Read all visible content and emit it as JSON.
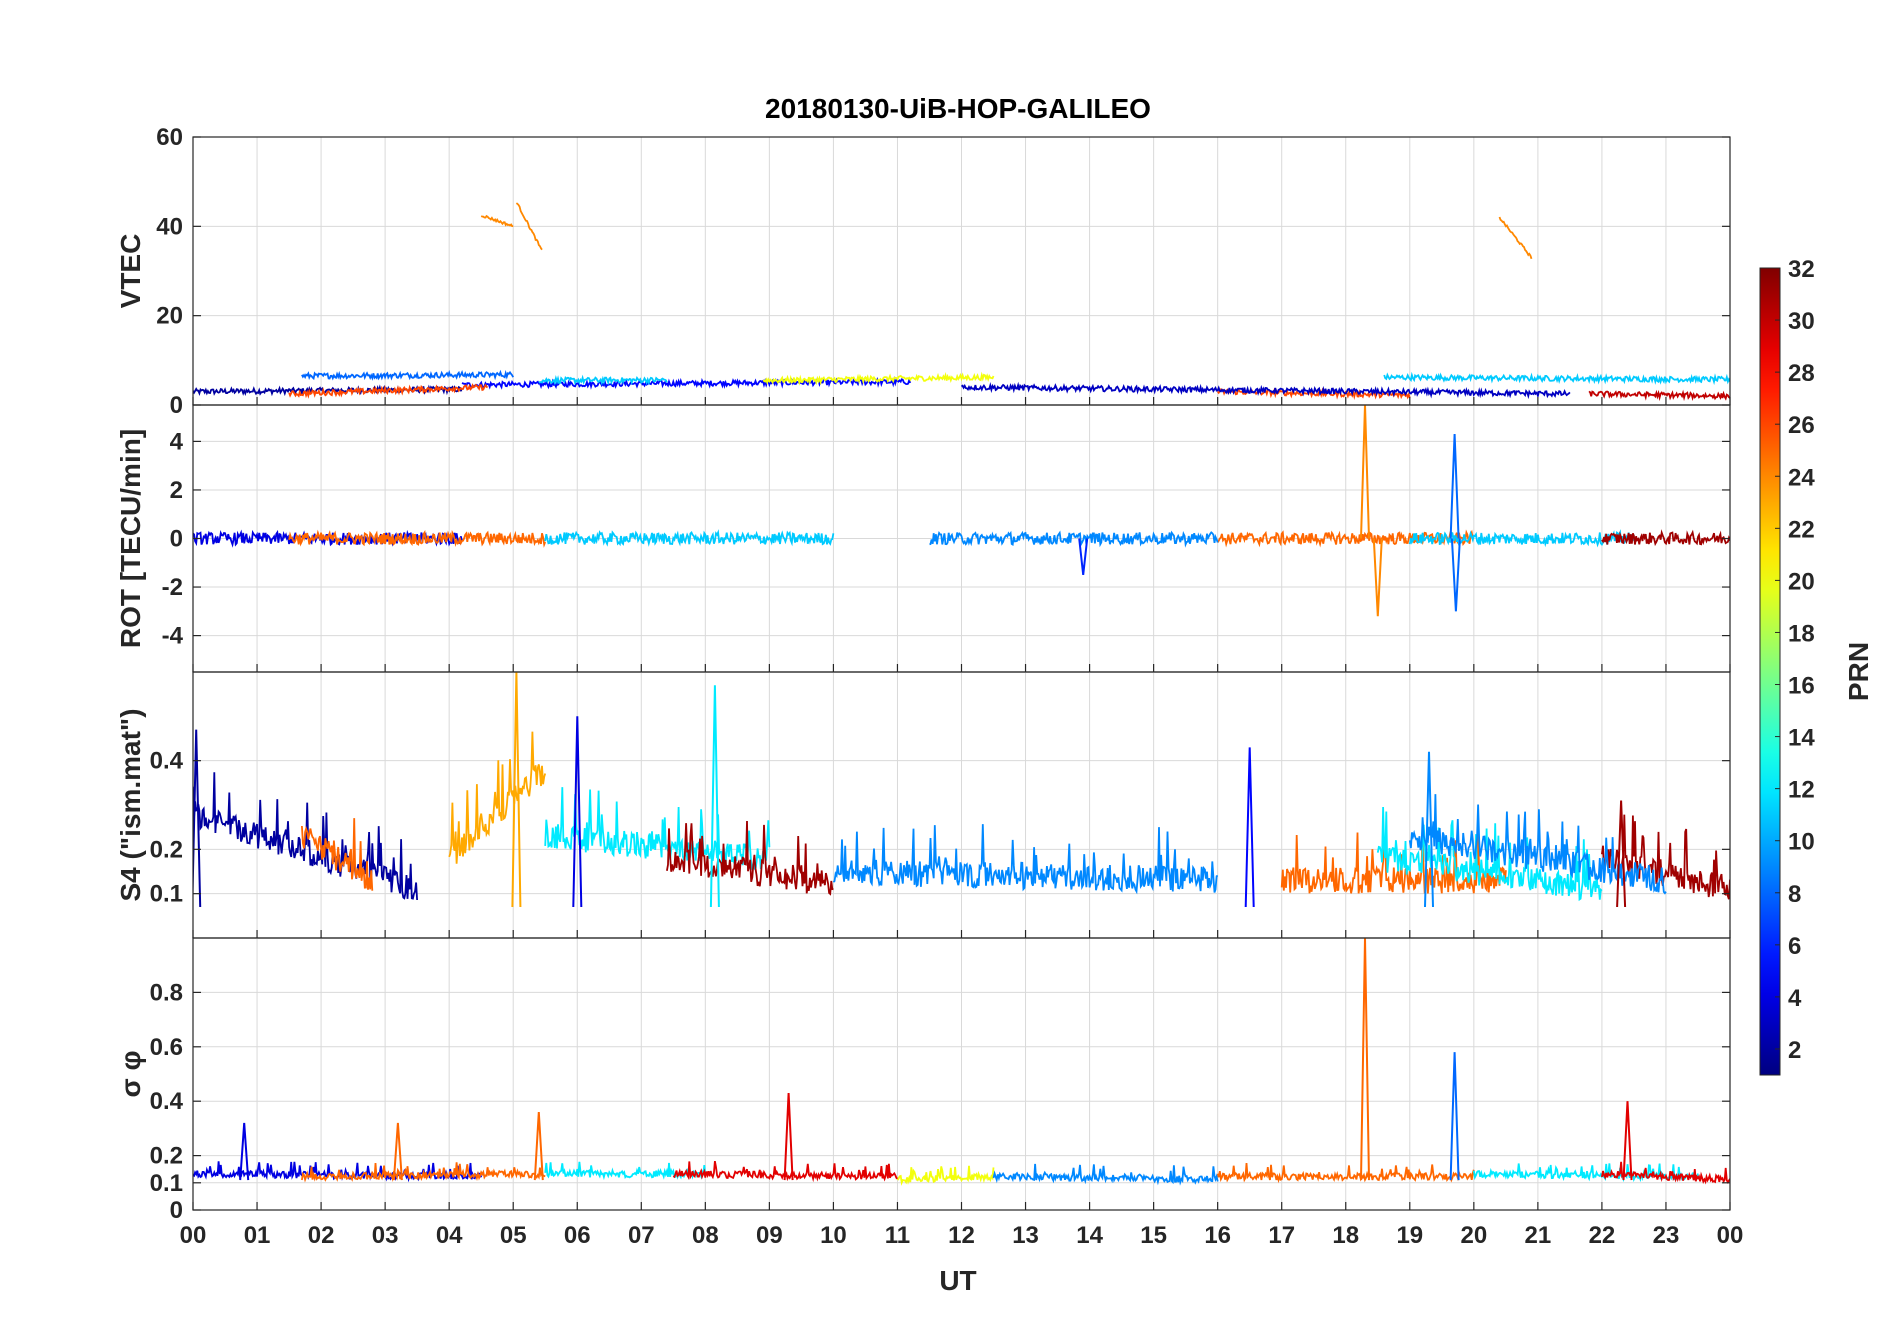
{
  "chart_data": {
    "type": "line",
    "title": "20180130-UiB-HOP-GALILEO",
    "xlabel": "UT",
    "x_ticks": [
      "00",
      "01",
      "02",
      "03",
      "04",
      "05",
      "06",
      "07",
      "08",
      "09",
      "10",
      "11",
      "12",
      "13",
      "14",
      "15",
      "16",
      "17",
      "18",
      "19",
      "20",
      "21",
      "22",
      "23",
      "00"
    ],
    "x_range_hours": [
      0,
      24
    ],
    "colorbar": {
      "label": "PRN",
      "range": [
        1,
        32
      ],
      "ticks": [
        "2",
        "4",
        "6",
        "8",
        "10",
        "12",
        "14",
        "16",
        "18",
        "20",
        "22",
        "24",
        "26",
        "28",
        "30",
        "32"
      ],
      "colormap": "jet"
    },
    "panels": [
      {
        "id": "vtec",
        "ylabel": "VTEC",
        "ylim": [
          0,
          60
        ],
        "yticks": [
          "0",
          "20",
          "40",
          "60"
        ],
        "ytick_values": [
          0,
          20,
          40,
          60
        ],
        "baseline": 4,
        "noise": 0.6,
        "series": [
          {
            "prn": 2,
            "segments": [
              [
                0.0,
                4.2,
                3.0,
                3.5
              ]
            ]
          },
          {
            "prn": 5,
            "segments": [
              [
                4.2,
                11.2,
                4.5,
                5.2
              ]
            ]
          },
          {
            "prn": 8,
            "segments": [
              [
                1.7,
                5.0,
                6.5,
                6.8
              ]
            ]
          },
          {
            "prn": 11,
            "segments": [
              [
                5.4,
                7.4,
                5.5,
                5.6
              ],
              [
                18.6,
                24.0,
                6.2,
                5.7
              ]
            ]
          },
          {
            "prn": 20,
            "segments": [
              [
                8.9,
                12.5,
                5.5,
                6.2
              ]
            ]
          },
          {
            "prn": 24,
            "segments": [
              [
                4.5,
                5.0,
                42.5,
                40.0
              ],
              [
                5.05,
                5.45,
                45.5,
                34.5
              ],
              [
                20.4,
                20.9,
                42.0,
                33.0
              ]
            ]
          },
          {
            "prn": 26,
            "segments": [
              [
                1.5,
                4.6,
                2.5,
                4.0
              ],
              [
                16.0,
                19.0,
                3.0,
                2.2
              ]
            ]
          },
          {
            "prn": 3,
            "segments": [
              [
                12.0,
                21.5,
                4.0,
                2.5
              ]
            ]
          },
          {
            "prn": 30,
            "segments": [
              [
                21.8,
                24.0,
                2.5,
                2.0
              ]
            ]
          }
        ]
      },
      {
        "id": "rot",
        "ylabel": "ROT [TECU/min]",
        "ylim": [
          -5.5,
          5.5
        ],
        "yticks": [
          "-4",
          "-2",
          "0",
          "2",
          "4"
        ],
        "ytick_values": [
          -4,
          -2,
          0,
          2,
          4
        ],
        "baseline": 0,
        "noise": 0.25,
        "spikes": [
          {
            "hour": 18.3,
            "value": 5.5,
            "prn": 24
          },
          {
            "hour": 18.5,
            "value": -3.2,
            "prn": 24
          },
          {
            "hour": 19.7,
            "value": 4.3,
            "prn": 8
          },
          {
            "hour": 19.72,
            "value": -3.0,
            "prn": 8
          },
          {
            "hour": 13.9,
            "value": -1.5,
            "prn": 6
          }
        ],
        "series": [
          {
            "prn": 4,
            "segments": [
              [
                0.0,
                4.2,
                0,
                0
              ]
            ]
          },
          {
            "prn": 25,
            "segments": [
              [
                1.5,
                5.5,
                0,
                0
              ],
              [
                16.0,
                20.0,
                0,
                0
              ]
            ]
          },
          {
            "prn": 11,
            "segments": [
              [
                5.5,
                10.0,
                0,
                0
              ],
              [
                19.0,
                22.5,
                0,
                0
              ]
            ]
          },
          {
            "prn": 9,
            "segments": [
              [
                11.5,
                16.0,
                0,
                0
              ]
            ]
          },
          {
            "prn": 31,
            "segments": [
              [
                22.0,
                24.0,
                0,
                0
              ]
            ]
          }
        ]
      },
      {
        "id": "s4",
        "ylabel": "S4 (\"ism.mat\")",
        "ylim": [
          0,
          0.6
        ],
        "yticks": [
          "0.1",
          "0.2",
          "0.4"
        ],
        "ytick_values": [
          0.1,
          0.2,
          0.4
        ],
        "baseline": 0.07,
        "noise": 0.06,
        "spikes": [
          {
            "hour": 5.05,
            "value": 0.6,
            "prn": 23
          },
          {
            "hour": 8.15,
            "value": 0.57,
            "prn": 12
          },
          {
            "hour": 6.0,
            "value": 0.5,
            "prn": 4
          },
          {
            "hour": 0.05,
            "value": 0.47,
            "prn": 2
          },
          {
            "hour": 16.5,
            "value": 0.43,
            "prn": 5
          },
          {
            "hour": 19.3,
            "value": 0.42,
            "prn": 9
          },
          {
            "hour": 22.3,
            "value": 0.31,
            "prn": 31
          }
        ],
        "series": [
          {
            "prn": 2,
            "segments": [
              [
                0.0,
                3.5,
                0.25,
                0.08
              ]
            ]
          },
          {
            "prn": 25,
            "segments": [
              [
                1.7,
                2.8,
                0.2,
                0.1
              ],
              [
                17.0,
                20.5,
                0.1,
                0.1
              ]
            ]
          },
          {
            "prn": 23,
            "segments": [
              [
                4.0,
                5.5,
                0.15,
                0.35
              ]
            ]
          },
          {
            "prn": 12,
            "segments": [
              [
                5.5,
                9.0,
                0.2,
                0.15
              ],
              [
                18.5,
                22.0,
                0.15,
                0.08
              ]
            ]
          },
          {
            "prn": 31,
            "segments": [
              [
                7.4,
                10.0,
                0.15,
                0.09
              ],
              [
                22.0,
                24.0,
                0.15,
                0.08
              ]
            ]
          },
          {
            "prn": 9,
            "segments": [
              [
                10.0,
                16.0,
                0.12,
                0.1
              ],
              [
                19.0,
                23.0,
                0.2,
                0.1
              ]
            ]
          }
        ]
      },
      {
        "id": "sigma_phi",
        "ylabel": "σ φ",
        "ylim": [
          0,
          1.0
        ],
        "yticks": [
          "0",
          "0.1",
          "0.2",
          "0.4",
          "0.6",
          "0.8"
        ],
        "ytick_values": [
          0,
          0.1,
          0.2,
          0.4,
          0.6,
          0.8
        ],
        "baseline": 0.11,
        "noise": 0.025,
        "spikes": [
          {
            "hour": 18.3,
            "value": 1.0,
            "prn": 25
          },
          {
            "hour": 19.7,
            "value": 0.58,
            "prn": 8
          },
          {
            "hour": 9.3,
            "value": 0.43,
            "prn": 29
          },
          {
            "hour": 22.4,
            "value": 0.4,
            "prn": 29
          },
          {
            "hour": 5.4,
            "value": 0.36,
            "prn": 25
          },
          {
            "hour": 3.2,
            "value": 0.32,
            "prn": 25
          },
          {
            "hour": 0.8,
            "value": 0.32,
            "prn": 4
          }
        ],
        "series": [
          {
            "prn": 4,
            "segments": [
              [
                0.0,
                4.5,
                0.12,
                0.11
              ]
            ]
          },
          {
            "prn": 25,
            "segments": [
              [
                1.7,
                5.5,
                0.11,
                0.12
              ],
              [
                16.0,
                20.0,
                0.11,
                0.11
              ]
            ]
          },
          {
            "prn": 12,
            "segments": [
              [
                5.5,
                8.0,
                0.12,
                0.12
              ],
              [
                20.0,
                23.5,
                0.12,
                0.11
              ]
            ]
          },
          {
            "prn": 29,
            "segments": [
              [
                7.5,
                11.0,
                0.12,
                0.11
              ],
              [
                22.0,
                24.0,
                0.12,
                0.1
              ]
            ]
          },
          {
            "prn": 20,
            "segments": [
              [
                11.0,
                12.5,
                0.1,
                0.11
              ]
            ]
          },
          {
            "prn": 9,
            "segments": [
              [
                12.5,
                16.0,
                0.11,
                0.1
              ]
            ]
          }
        ]
      }
    ]
  }
}
